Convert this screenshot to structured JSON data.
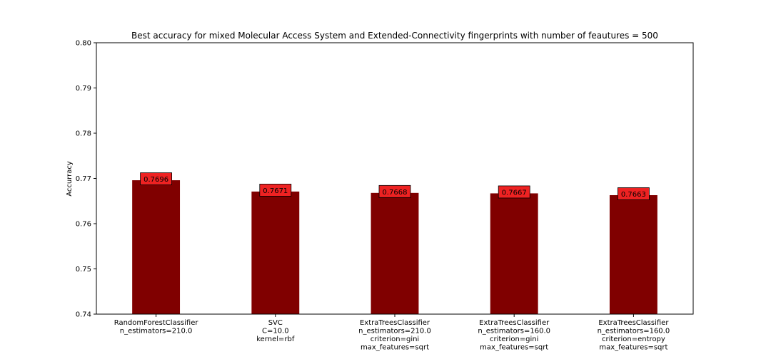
{
  "chart_data": {
    "type": "bar",
    "title": "Best accuracy for mixed Molecular Access System and Extended-Connectivity fingerprints with number of feautures = 500",
    "xlabel": "",
    "ylabel": "Accurracy",
    "ylim": [
      0.74,
      0.8
    ],
    "yticks": [
      "0.74",
      "0.75",
      "0.76",
      "0.77",
      "0.78",
      "0.79",
      "0.80"
    ],
    "categories": [
      [
        "RandomForestClassifier",
        "n_estimators=210.0"
      ],
      [
        "SVC",
        "C=10.0",
        "kernel=rbf"
      ],
      [
        "ExtraTreesClassifier",
        "n_estimators=210.0",
        "criterion=gini",
        "max_features=sqrt"
      ],
      [
        "ExtraTreesClassifier",
        "n_estimators=160.0",
        "criterion=gini",
        "max_features=sqrt"
      ],
      [
        "ExtraTreesClassifier",
        "n_estimators=160.0",
        "criterion=entropy",
        "max_features=sqrt"
      ]
    ],
    "values": [
      0.7696,
      0.7671,
      0.7668,
      0.7667,
      0.7663
    ],
    "data_labels": [
      "0.7696",
      "0.7671",
      "0.7668",
      "0.7667",
      "0.7663"
    ],
    "bar_color": "#800000",
    "label_box_color": "#ee2222",
    "grid": false,
    "legend": "none"
  }
}
